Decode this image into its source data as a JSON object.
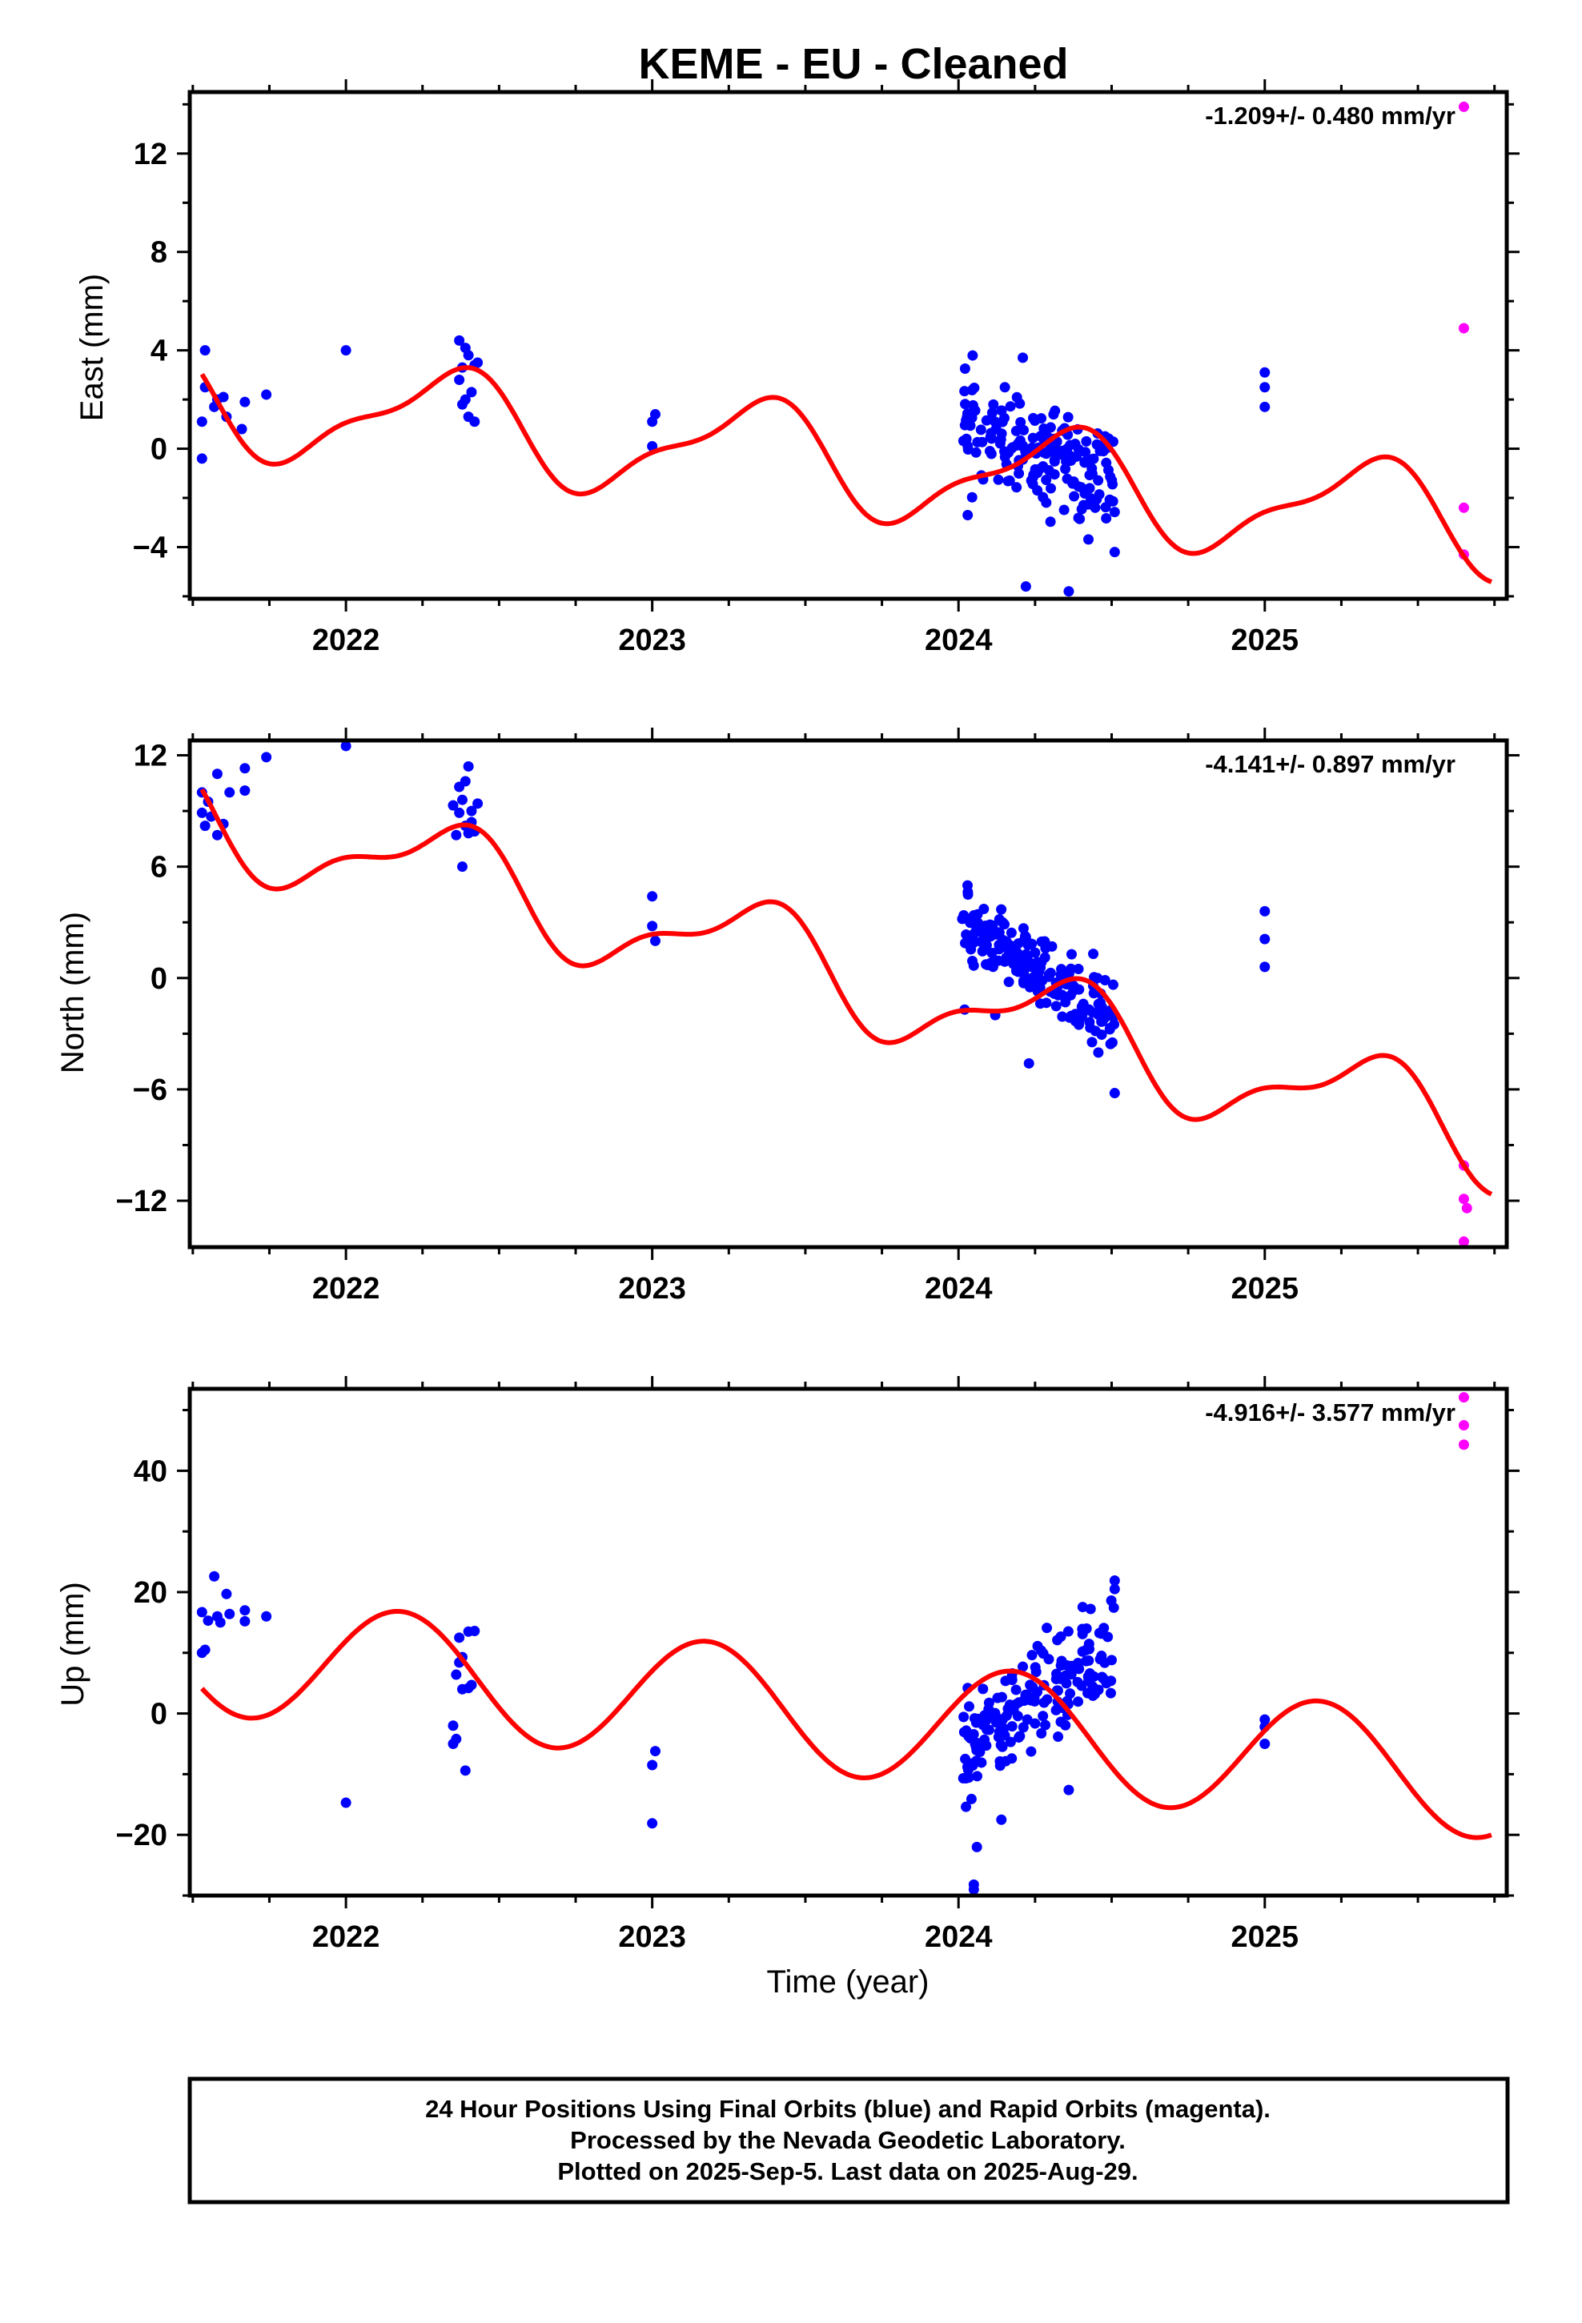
{
  "title": "KEME  - EU - Cleaned",
  "colors": {
    "final": "#0000ff",
    "rapid": "#ff00ff",
    "model": "#ff0000",
    "frame": "#000000"
  },
  "xlabel": "Time (year)",
  "footer": {
    "line1": "24 Hour Positions Using Final Orbits (blue) and Rapid Orbits (magenta).",
    "line2": "Processed by the Nevada Geodetic Laboratory.",
    "line3": "Plotted on 2025-Sep-5. Last data on 2025-Aug-29."
  },
  "chart_data": [
    {
      "type": "scatter",
      "ylabel": "East (mm)",
      "rate": "-1.209+/- 0.480 mm/yr",
      "xlim": [
        2021.49,
        2025.79
      ],
      "ylim": [
        -6.1,
        14.5
      ],
      "x_ticks": [
        2022,
        2023,
        2024,
        2025
      ],
      "x_tick_labels": [
        "2022",
        "2023",
        "2024",
        "2025"
      ],
      "y_ticks": [
        -4,
        0,
        4,
        8,
        12
      ],
      "y_tick_labels": [
        "−4",
        "0",
        "4",
        "8",
        "12"
      ],
      "grid": false,
      "model": {
        "t0": 2021.53,
        "t1": 2025.74,
        "a": 2.0,
        "b": -1.21,
        "amp1": 2.0,
        "phase1": 0.8,
        "amp2": 0.7,
        "phase2": 0.3
      },
      "final_points": [
        [
          2021.53,
          -0.4
        ],
        [
          2021.53,
          1.1
        ],
        [
          2021.54,
          2.5
        ],
        [
          2021.54,
          4.0
        ],
        [
          2021.57,
          1.7
        ],
        [
          2021.58,
          2.0
        ],
        [
          2021.6,
          2.1
        ],
        [
          2021.61,
          1.3
        ],
        [
          2021.66,
          0.8
        ],
        [
          2021.67,
          1.9
        ],
        [
          2021.74,
          2.2
        ],
        [
          2022.0,
          4.0
        ],
        [
          2022.37,
          4.4
        ],
        [
          2022.37,
          2.8
        ],
        [
          2022.38,
          1.8
        ],
        [
          2022.38,
          3.3
        ],
        [
          2022.39,
          4.1
        ],
        [
          2022.39,
          2.0
        ],
        [
          2022.4,
          3.8
        ],
        [
          2022.4,
          1.3
        ],
        [
          2022.41,
          2.3
        ],
        [
          2022.42,
          3.4
        ],
        [
          2022.42,
          1.1
        ],
        [
          2022.43,
          3.5
        ],
        [
          2023.0,
          0.1
        ],
        [
          2023.0,
          1.1
        ],
        [
          2023.01,
          1.4
        ],
        [
          2025.0,
          1.7
        ],
        [
          2025.0,
          2.5
        ],
        [
          2025.0,
          3.1
        ]
      ],
      "rapid_points": [
        [
          2025.65,
          13.9
        ],
        [
          2025.65,
          4.9
        ],
        [
          2025.65,
          -2.4
        ],
        [
          2025.65,
          -4.3
        ]
      ],
      "dense_cluster": {
        "x0": 2024.01,
        "x1": 2024.51,
        "center_start": 1.0,
        "center_end": -1.5,
        "spread": 1.3,
        "count": 180,
        "seed": 11
      },
      "outliers": [
        [
          2024.22,
          -5.6
        ],
        [
          2024.36,
          -5.8
        ],
        [
          2024.03,
          -2.7
        ],
        [
          2024.21,
          3.7
        ],
        [
          2024.51,
          -4.2
        ]
      ]
    },
    {
      "type": "scatter",
      "ylabel": "North (mm)",
      "rate": "-4.141+/- 0.897 mm/yr",
      "xlim": [
        2021.49,
        2025.79
      ],
      "ylim": [
        -14.5,
        12.8
      ],
      "x_ticks": [
        2022,
        2023,
        2024,
        2025
      ],
      "x_tick_labels": [
        "2022",
        "2023",
        "2024",
        "2025"
      ],
      "y_ticks": [
        -12,
        -6,
        0,
        6,
        12
      ],
      "y_tick_labels": [
        "−12",
        "−6",
        "0",
        "6",
        "12"
      ],
      "grid": false,
      "model": {
        "t0": 2021.53,
        "t1": 2025.74,
        "a": 8.8,
        "b": -4.14,
        "amp1": 2.5,
        "phase1": 0.8,
        "amp2": 1.0,
        "phase2": 0.3
      },
      "final_points": [
        [
          2021.53,
          10.0
        ],
        [
          2021.53,
          8.9
        ],
        [
          2021.54,
          8.2
        ],
        [
          2021.55,
          9.5
        ],
        [
          2021.56,
          8.7
        ],
        [
          2021.58,
          11.0
        ],
        [
          2021.58,
          7.7
        ],
        [
          2021.6,
          8.3
        ],
        [
          2021.62,
          10.0
        ],
        [
          2021.67,
          11.3
        ],
        [
          2021.67,
          10.1
        ],
        [
          2021.74,
          11.9
        ],
        [
          2022.0,
          12.5
        ],
        [
          2022.35,
          9.3
        ],
        [
          2022.36,
          7.7
        ],
        [
          2022.37,
          8.9
        ],
        [
          2022.37,
          10.3
        ],
        [
          2022.38,
          6.0
        ],
        [
          2022.38,
          9.6
        ],
        [
          2022.39,
          8.2
        ],
        [
          2022.39,
          10.6
        ],
        [
          2022.4,
          7.8
        ],
        [
          2022.4,
          11.4
        ],
        [
          2022.41,
          8.4
        ],
        [
          2022.41,
          9.0
        ],
        [
          2022.42,
          7.9
        ],
        [
          2022.43,
          9.4
        ],
        [
          2023.0,
          4.4
        ],
        [
          2023.0,
          2.8
        ],
        [
          2023.01,
          2.0
        ],
        [
          2025.0,
          3.6
        ],
        [
          2025.0,
          2.1
        ],
        [
          2025.0,
          0.6
        ]
      ],
      "rapid_points": [
        [
          2025.65,
          -10.1
        ],
        [
          2025.65,
          -11.9
        ],
        [
          2025.66,
          -12.4
        ],
        [
          2025.65,
          -14.2
        ]
      ],
      "dense_cluster": {
        "x0": 2024.01,
        "x1": 2024.51,
        "center_start": 3.3,
        "center_end": -2.5,
        "spread": 1.2,
        "count": 190,
        "seed": 23
      },
      "outliers": [
        [
          2024.02,
          -1.7
        ],
        [
          2024.12,
          -2.0
        ],
        [
          2024.51,
          -6.2
        ],
        [
          2024.23,
          -4.6
        ],
        [
          2024.44,
          1.3
        ]
      ]
    },
    {
      "type": "scatter",
      "ylabel": "Up (mm)",
      "rate": "-4.916+/- 3.577 mm/yr",
      "xlim": [
        2021.49,
        2025.79
      ],
      "ylim": [
        -30,
        53.5
      ],
      "x_ticks": [
        2022,
        2023,
        2024,
        2025
      ],
      "x_tick_labels": [
        "2022",
        "2023",
        "2024",
        "2025"
      ],
      "y_ticks": [
        -20,
        0,
        20,
        40
      ],
      "y_tick_labels": [
        "−20",
        "0",
        "20",
        "40"
      ],
      "grid": false,
      "model": {
        "t0": 2021.53,
        "t1": 2025.74,
        "a": 10.0,
        "b": -4.92,
        "amp1": 10.0,
        "phase1": 0.65,
        "amp2": 0.0,
        "phase2": 0.0
      },
      "final_points": [
        [
          2021.53,
          16.7
        ],
        [
          2021.53,
          10.0
        ],
        [
          2021.54,
          10.5
        ],
        [
          2021.55,
          15.3
        ],
        [
          2021.57,
          22.6
        ],
        [
          2021.58,
          16.0
        ],
        [
          2021.59,
          15.0
        ],
        [
          2021.61,
          19.7
        ],
        [
          2021.62,
          16.4
        ],
        [
          2021.67,
          17.0
        ],
        [
          2021.67,
          15.2
        ],
        [
          2021.74,
          16.0
        ],
        [
          2022.0,
          -14.7
        ],
        [
          2022.35,
          -5.0
        ],
        [
          2022.35,
          -2.0
        ],
        [
          2022.36,
          6.4
        ],
        [
          2022.36,
          -4.2
        ],
        [
          2022.37,
          8.4
        ],
        [
          2022.37,
          12.5
        ],
        [
          2022.38,
          4.0
        ],
        [
          2022.38,
          9.3
        ],
        [
          2022.39,
          -9.4
        ],
        [
          2022.4,
          4.2
        ],
        [
          2022.4,
          13.5
        ],
        [
          2022.41,
          4.7
        ],
        [
          2022.42,
          13.6
        ],
        [
          2023.0,
          -18.1
        ],
        [
          2023.0,
          -8.5
        ],
        [
          2023.01,
          -6.2
        ],
        [
          2025.0,
          -1.0
        ],
        [
          2025.0,
          -5.0
        ],
        [
          2025.0,
          -2.2
        ]
      ],
      "rapid_points": [
        [
          2025.65,
          52.1
        ],
        [
          2025.65,
          47.5
        ],
        [
          2025.65,
          44.3
        ]
      ],
      "dense_cluster": {
        "x0": 2024.01,
        "x1": 2024.51,
        "center_start": -7.0,
        "center_end": 11.0,
        "spread": 5.0,
        "count": 180,
        "seed": 37
      },
      "outliers": [
        [
          2024.05,
          -28.2
        ],
        [
          2024.05,
          -29.0
        ],
        [
          2024.06,
          -22.0
        ],
        [
          2024.14,
          -17.5
        ],
        [
          2024.51,
          21.9
        ],
        [
          2024.51,
          20.5
        ],
        [
          2024.36,
          -12.6
        ],
        [
          2024.03,
          4.2
        ]
      ]
    }
  ]
}
